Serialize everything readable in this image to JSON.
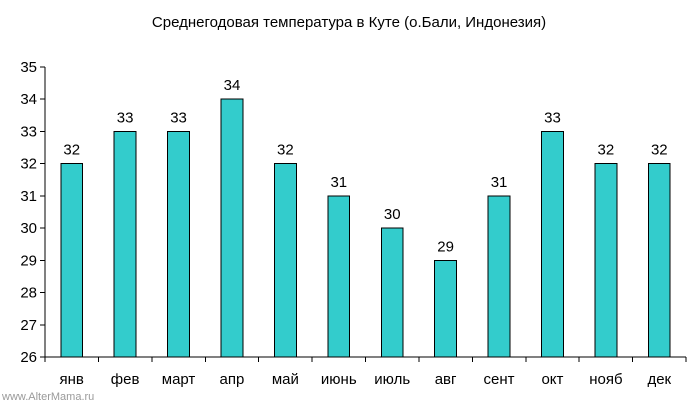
{
  "chart_data": {
    "type": "bar",
    "title": "Среднегодовая температура в Куте (о.Бали, Индонезия)",
    "categories": [
      "янв",
      "фев",
      "март",
      "апр",
      "май",
      "июнь",
      "июль",
      "авг",
      "сент",
      "окт",
      "нояб",
      "дек"
    ],
    "values": [
      32,
      33,
      33,
      34,
      32,
      31,
      30,
      29,
      31,
      33,
      32,
      32
    ],
    "xlabel": "",
    "ylabel": "",
    "ylim": [
      26,
      35
    ],
    "yticks": [
      26,
      27,
      28,
      29,
      30,
      31,
      32,
      33,
      34,
      35
    ],
    "grid": false,
    "legend": "none",
    "data_labels": true,
    "bar_color": "#33CCCC",
    "bar_edge_color": "#000000"
  },
  "watermark": "www.AlterMama.ru"
}
